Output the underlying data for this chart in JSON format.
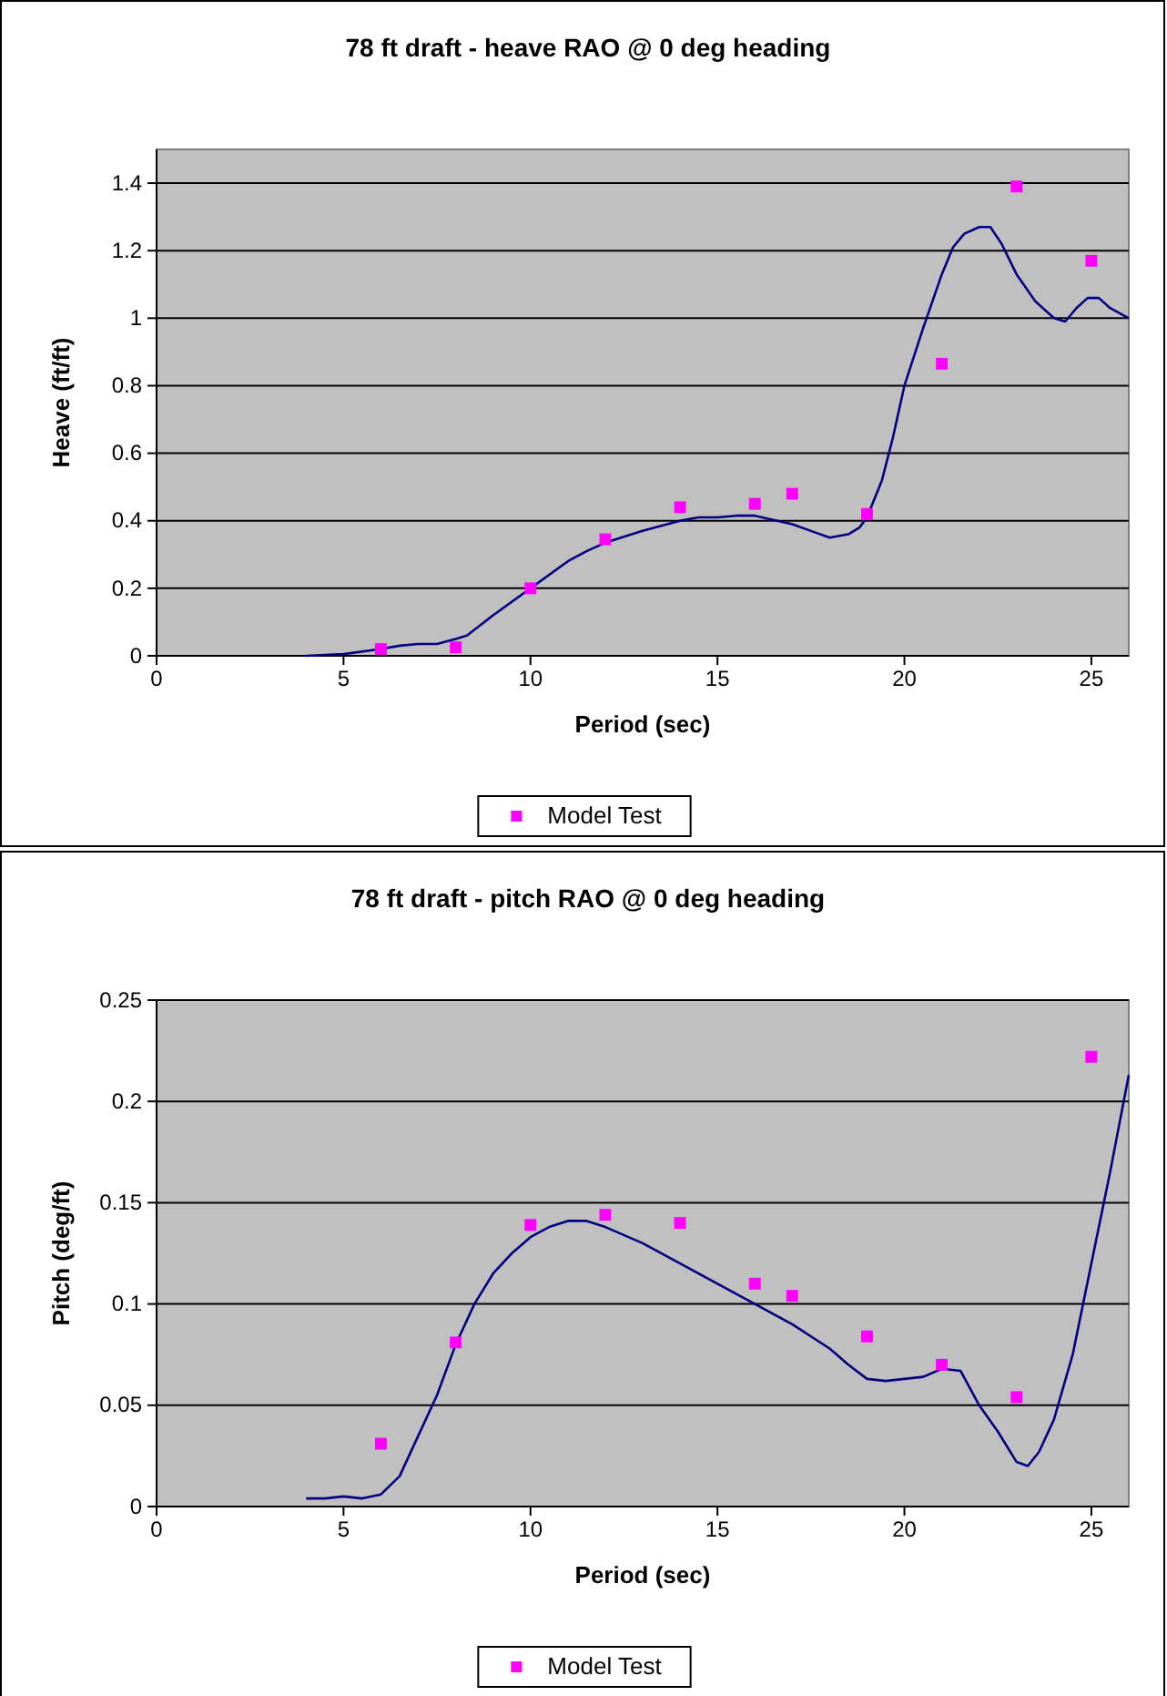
{
  "chart_data": [
    {
      "type": "line",
      "title": "78 ft draft - heave RAO @ 0 deg heading",
      "xlabel": "Period (sec)",
      "ylabel": "Heave (ft/ft)",
      "xlim": [
        0,
        26
      ],
      "xticks": [
        0,
        5,
        10,
        15,
        20,
        25
      ],
      "ylim": [
        0,
        1.5
      ],
      "yticks": [
        0,
        0.2,
        0.4,
        0.6,
        0.8,
        1,
        1.2,
        1.4
      ],
      "grid": "y",
      "legend": "bottom",
      "series": [
        {
          "color": "#000080",
          "marker": "none",
          "x": [
            4,
            5,
            6,
            6.5,
            7,
            7.5,
            8,
            8.3,
            9,
            10,
            11,
            11.5,
            12,
            13,
            14,
            14.5,
            15,
            15.5,
            16,
            17,
            17.5,
            18,
            18.5,
            18.8,
            19,
            19.4,
            19.7,
            20,
            20.5,
            21,
            21.3,
            21.6,
            22,
            22.3,
            22.6,
            23,
            23.5,
            24,
            24.3,
            24.6,
            24.9,
            25.2,
            25.5,
            26
          ],
          "values": [
            0,
            0.005,
            0.02,
            0.03,
            0.035,
            0.035,
            0.05,
            0.06,
            0.12,
            0.2,
            0.28,
            0.31,
            0.335,
            0.37,
            0.4,
            0.41,
            0.41,
            0.415,
            0.415,
            0.39,
            0.37,
            0.35,
            0.36,
            0.38,
            0.41,
            0.52,
            0.65,
            0.8,
            0.97,
            1.13,
            1.21,
            1.25,
            1.27,
            1.27,
            1.22,
            1.13,
            1.05,
            1,
            0.99,
            1.03,
            1.06,
            1.06,
            1.03,
            1
          ]
        },
        {
          "type": "scatter",
          "name": "Model Test",
          "color": "#ff00ff",
          "marker": "square",
          "x": [
            6,
            8,
            10,
            12,
            14,
            16,
            17,
            19,
            21,
            23,
            25
          ],
          "values": [
            0.02,
            0.025,
            0.2,
            0.345,
            0.44,
            0.45,
            0.48,
            0.42,
            0.865,
            1.39,
            1.17
          ]
        }
      ]
    },
    {
      "type": "line",
      "title": "78 ft draft - pitch RAO @ 0 deg heading",
      "xlabel": "Period (sec)",
      "ylabel": "Pitch (deg/ft)",
      "xlim": [
        0,
        26
      ],
      "xticks": [
        0,
        5,
        10,
        15,
        20,
        25
      ],
      "ylim": [
        0,
        0.25
      ],
      "yticks": [
        0,
        0.05,
        0.1,
        0.15,
        0.2,
        0.25
      ],
      "grid": "y",
      "legend": "bottom",
      "series": [
        {
          "color": "#000080",
          "marker": "none",
          "x": [
            4,
            4.5,
            5,
            5.5,
            6,
            6.5,
            7,
            7.5,
            8,
            8.5,
            9,
            9.5,
            10,
            10.5,
            11,
            11.5,
            12,
            13,
            14,
            15,
            16,
            17,
            18,
            18.5,
            19,
            19.5,
            20,
            20.5,
            21,
            21.5,
            22,
            22.5,
            23,
            23.3,
            23.6,
            24,
            24.5,
            25,
            25.5,
            26
          ],
          "values": [
            0.004,
            0.004,
            0.005,
            0.004,
            0.006,
            0.015,
            0.035,
            0.055,
            0.08,
            0.1,
            0.115,
            0.125,
            0.133,
            0.138,
            0.141,
            0.141,
            0.138,
            0.13,
            0.12,
            0.11,
            0.1,
            0.09,
            0.078,
            0.07,
            0.063,
            0.062,
            0.063,
            0.064,
            0.068,
            0.067,
            0.05,
            0.037,
            0.022,
            0.02,
            0.027,
            0.043,
            0.075,
            0.12,
            0.165,
            0.213
          ]
        },
        {
          "type": "scatter",
          "name": "Model Test",
          "color": "#ff00ff",
          "marker": "square",
          "x": [
            6,
            8,
            10,
            12,
            14,
            16,
            17,
            19,
            21,
            23,
            25
          ],
          "values": [
            0.031,
            0.081,
            0.139,
            0.144,
            0.14,
            0.11,
            0.104,
            0.084,
            0.07,
            0.054,
            0.222
          ]
        }
      ]
    }
  ]
}
